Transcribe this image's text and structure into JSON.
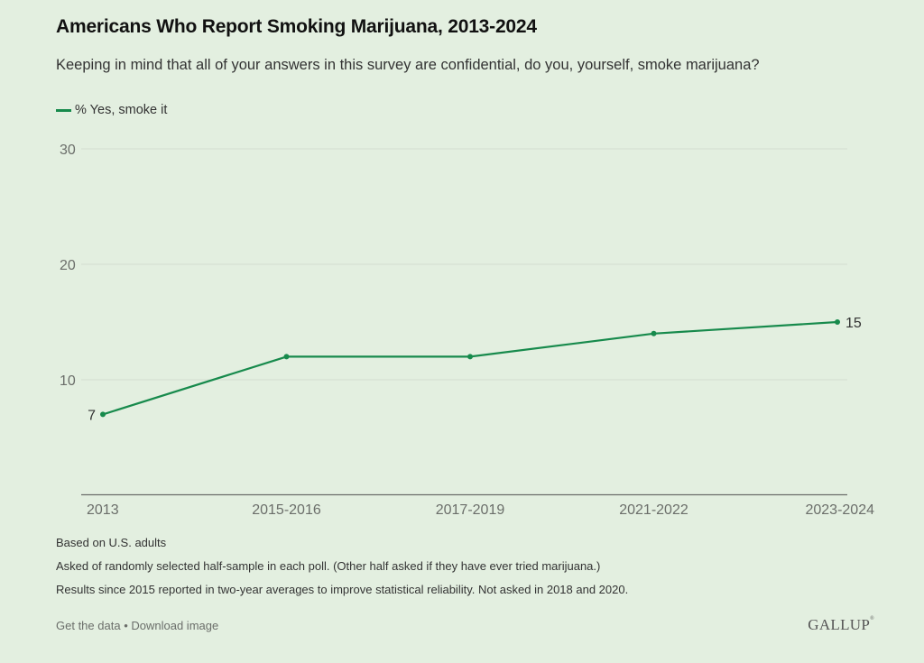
{
  "header": {
    "title": "Americans Who Report Smoking Marijuana, 2013-2024",
    "subtitle": "Keeping in mind that all of your answers in this survey are confidential, do you, yourself, smoke marijuana?"
  },
  "colors": {
    "background": "#e3efe0",
    "series": "#178a4c",
    "grid": "#d3ddd0",
    "axis": "#6b6e6a"
  },
  "chart_data": {
    "type": "line",
    "title": "Americans Who Report Smoking Marijuana, 2013-2024",
    "subtitle": "Keeping in mind that all of your answers in this survey are confidential, do you, yourself, smoke marijuana?",
    "categories": [
      "2013",
      "2015-2016",
      "2017-2019",
      "2021-2022",
      "2023-2024"
    ],
    "series": [
      {
        "name": "% Yes, smoke it",
        "values": [
          7,
          12,
          12,
          14,
          15
        ]
      }
    ],
    "data_labels": [
      {
        "index": 0,
        "text": "7"
      },
      {
        "index": 4,
        "text": "15"
      }
    ],
    "xlabel": "",
    "ylabel": "",
    "ylim": [
      0,
      30
    ],
    "yticks": [
      10,
      20,
      30
    ],
    "grid": true,
    "legend": "top-left"
  },
  "legend": {
    "items": [
      {
        "label": "% Yes, smoke it"
      }
    ]
  },
  "notes": [
    "Based on U.S. adults",
    "Asked of randomly selected half-sample in each poll. (Other half asked if they have ever tried marijuana.)",
    "Results since 2015 reported in two-year averages to improve statistical reliability. Not asked in 2018 and 2020."
  ],
  "footer": {
    "get_data": "Get the data",
    "separator": "•",
    "download_image": "Download image",
    "brand": "GALLUP",
    "brand_mark": "®"
  }
}
